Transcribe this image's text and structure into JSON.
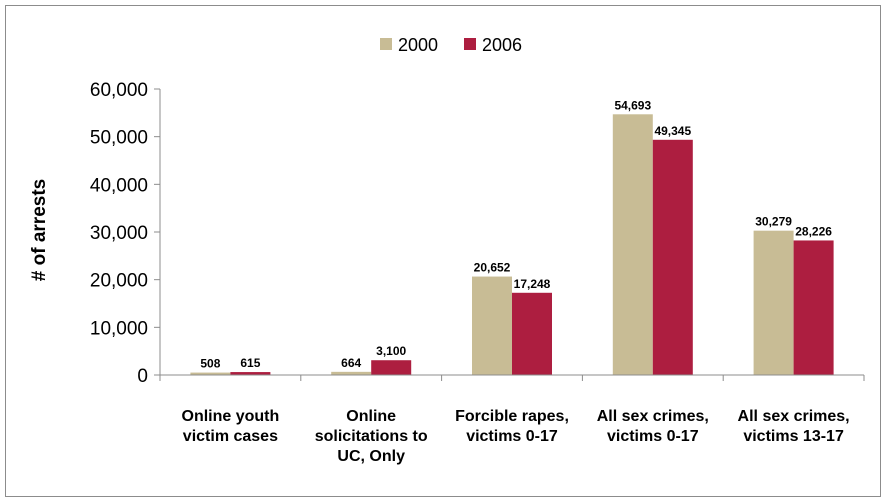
{
  "chart_data": {
    "type": "bar",
    "title": "",
    "xlabel": "",
    "ylabel": "# of arrests",
    "ylim": [
      0,
      60000
    ],
    "yticks": [
      "0",
      "10,000",
      "20,000",
      "30,000",
      "40,000",
      "50,000",
      "60,000"
    ],
    "categories": [
      [
        "Online youth",
        "victim cases"
      ],
      [
        "Online",
        "solicitations to",
        "UC, Only"
      ],
      [
        "Forcible rapes,",
        "victims 0-17"
      ],
      [
        "All sex crimes,",
        "victims 0-17"
      ],
      [
        "All sex crimes,",
        "victims 13-17"
      ]
    ],
    "series": [
      {
        "name": "2000",
        "color": "#c8bc95",
        "values": [
          508,
          664,
          20652,
          54693,
          30279
        ],
        "labels": [
          "508",
          "664",
          "20,652",
          "54,693",
          "30,279"
        ]
      },
      {
        "name": "2006",
        "color": "#ad1e40",
        "values": [
          615,
          3100,
          17248,
          49345,
          28226
        ],
        "labels": [
          "615",
          "3,100",
          "17,248",
          "49,345",
          "28,226"
        ]
      }
    ],
    "grid": false,
    "legend_position": "top"
  }
}
